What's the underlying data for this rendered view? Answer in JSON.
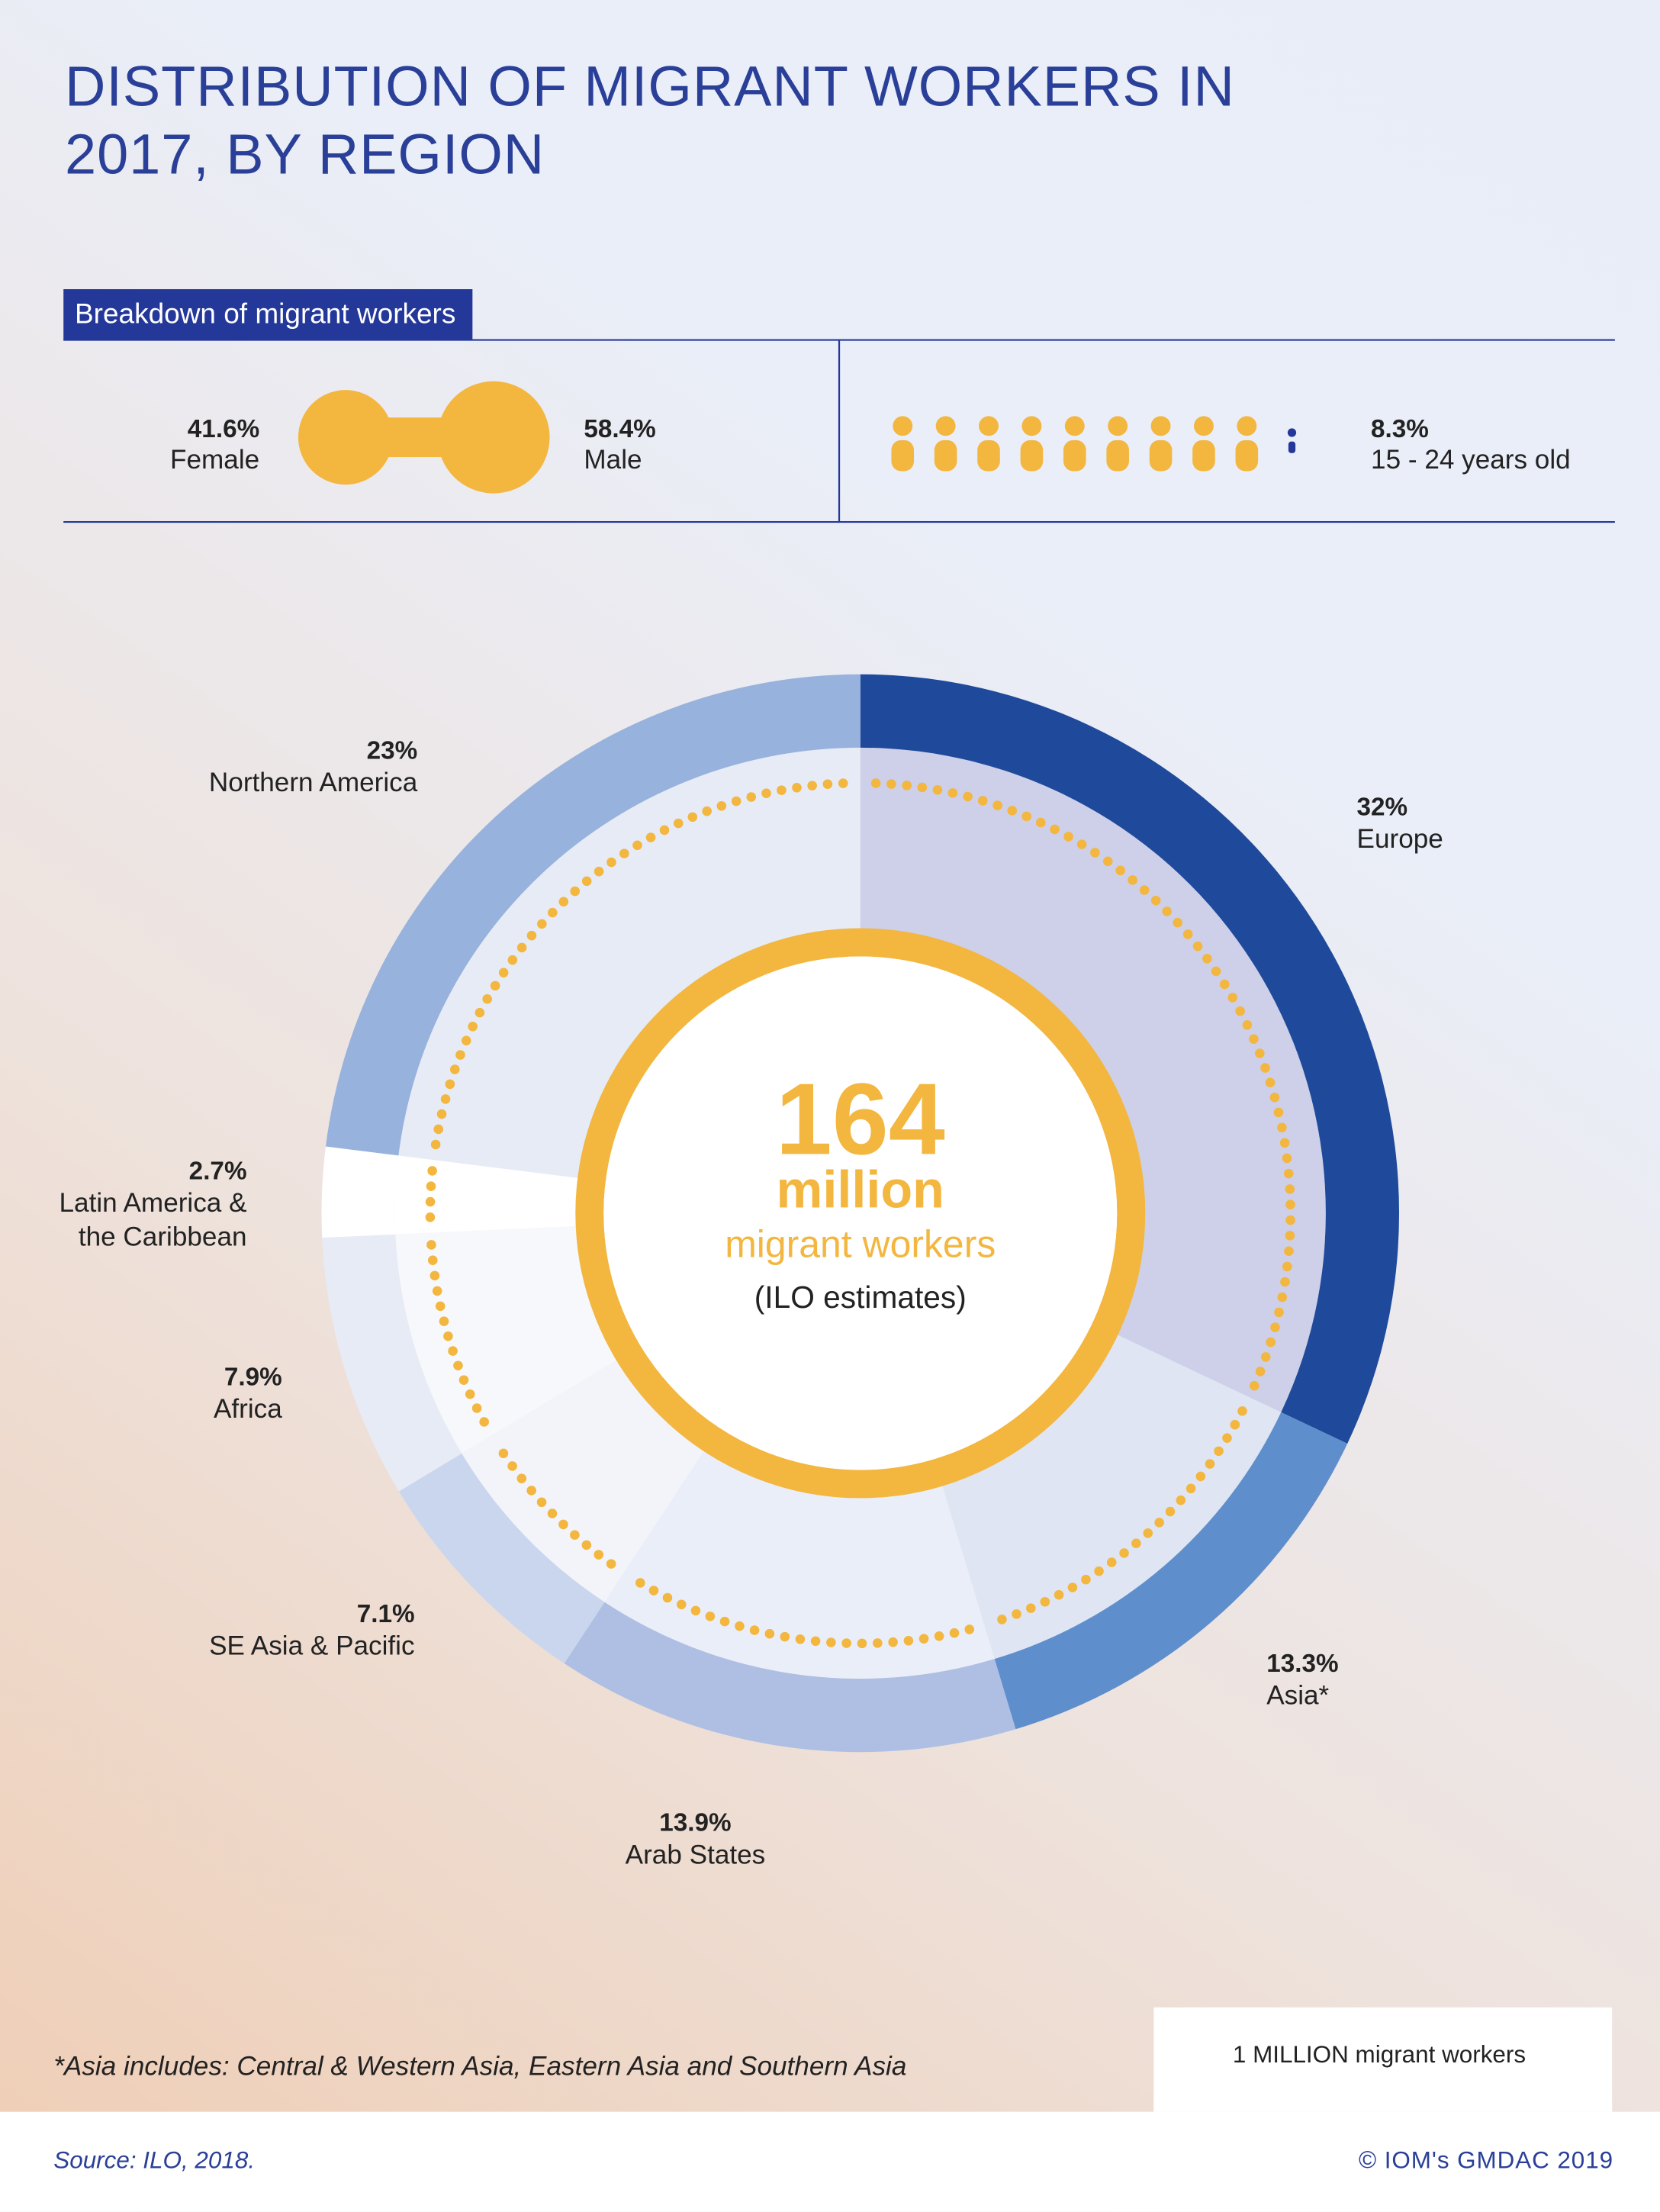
{
  "title": "DISTRIBUTION OF MIGRANT WORKERS IN 2017, BY REGION",
  "breakdown": {
    "heading": "Breakdown of migrant workers",
    "female": {
      "value": 41.6,
      "value_label": "41.6%",
      "name": "Female"
    },
    "male": {
      "value": 58.4,
      "value_label": "58.4%",
      "name": "Male"
    },
    "youth": {
      "value": 8.3,
      "value_label": "8.3%",
      "name": "15 - 24 years old"
    }
  },
  "chart_data": {
    "type": "pie",
    "categories": [
      "Europe",
      "Asia*",
      "Arab States",
      "SE Asia & Pacific",
      "Africa",
      "Latin America & the Caribbean",
      "Northern America"
    ],
    "values": [
      32,
      13.3,
      13.9,
      7.1,
      7.9,
      2.7,
      23
    ],
    "value_labels": [
      "32%",
      "13.3%",
      "13.9%",
      "7.1%",
      "7.9%",
      "2.7%",
      "23%"
    ],
    "colors": [
      "#1f4a9b",
      "#5e8fcc",
      "#aebfe3",
      "#c9d6ee",
      "#e6ebf5",
      "#ffffff",
      "#97b2dc"
    ],
    "inner_colors": [
      "#cdd0e8",
      "#dfe5f3",
      "#eaeef8",
      "#f2f4fa",
      "#f7f8fc",
      "#ffffff",
      "#e6ebf6"
    ],
    "center": {
      "total": 164,
      "unit": "million",
      "label": "migrant workers",
      "note": "(ILO estimates)"
    },
    "legend": "1 MILLION migrant workers"
  },
  "footnote": "*Asia includes: Central & Western Asia, Eastern Asia and Southern Asia",
  "source": "Source: ILO, 2018.",
  "copyright": "© IOM's GMDAC 2019"
}
